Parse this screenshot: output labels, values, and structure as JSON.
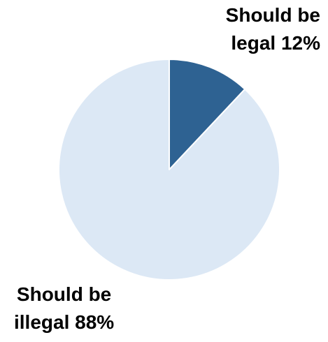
{
  "chart_data": {
    "type": "pie",
    "title": "",
    "slices": [
      {
        "label_line1": "Should be",
        "label_line2": "legal 12%",
        "category": "Should be legal",
        "value": 12,
        "color": "#2e6292"
      },
      {
        "label_line1": "Should be",
        "label_line2": "illegal 88%",
        "category": "Should be illegal",
        "value": 88,
        "color": "#dce8f5"
      }
    ],
    "start_angle_deg": 0,
    "direction": "clockwise",
    "slice_border_color": "#ffffff",
    "legend": "none"
  }
}
